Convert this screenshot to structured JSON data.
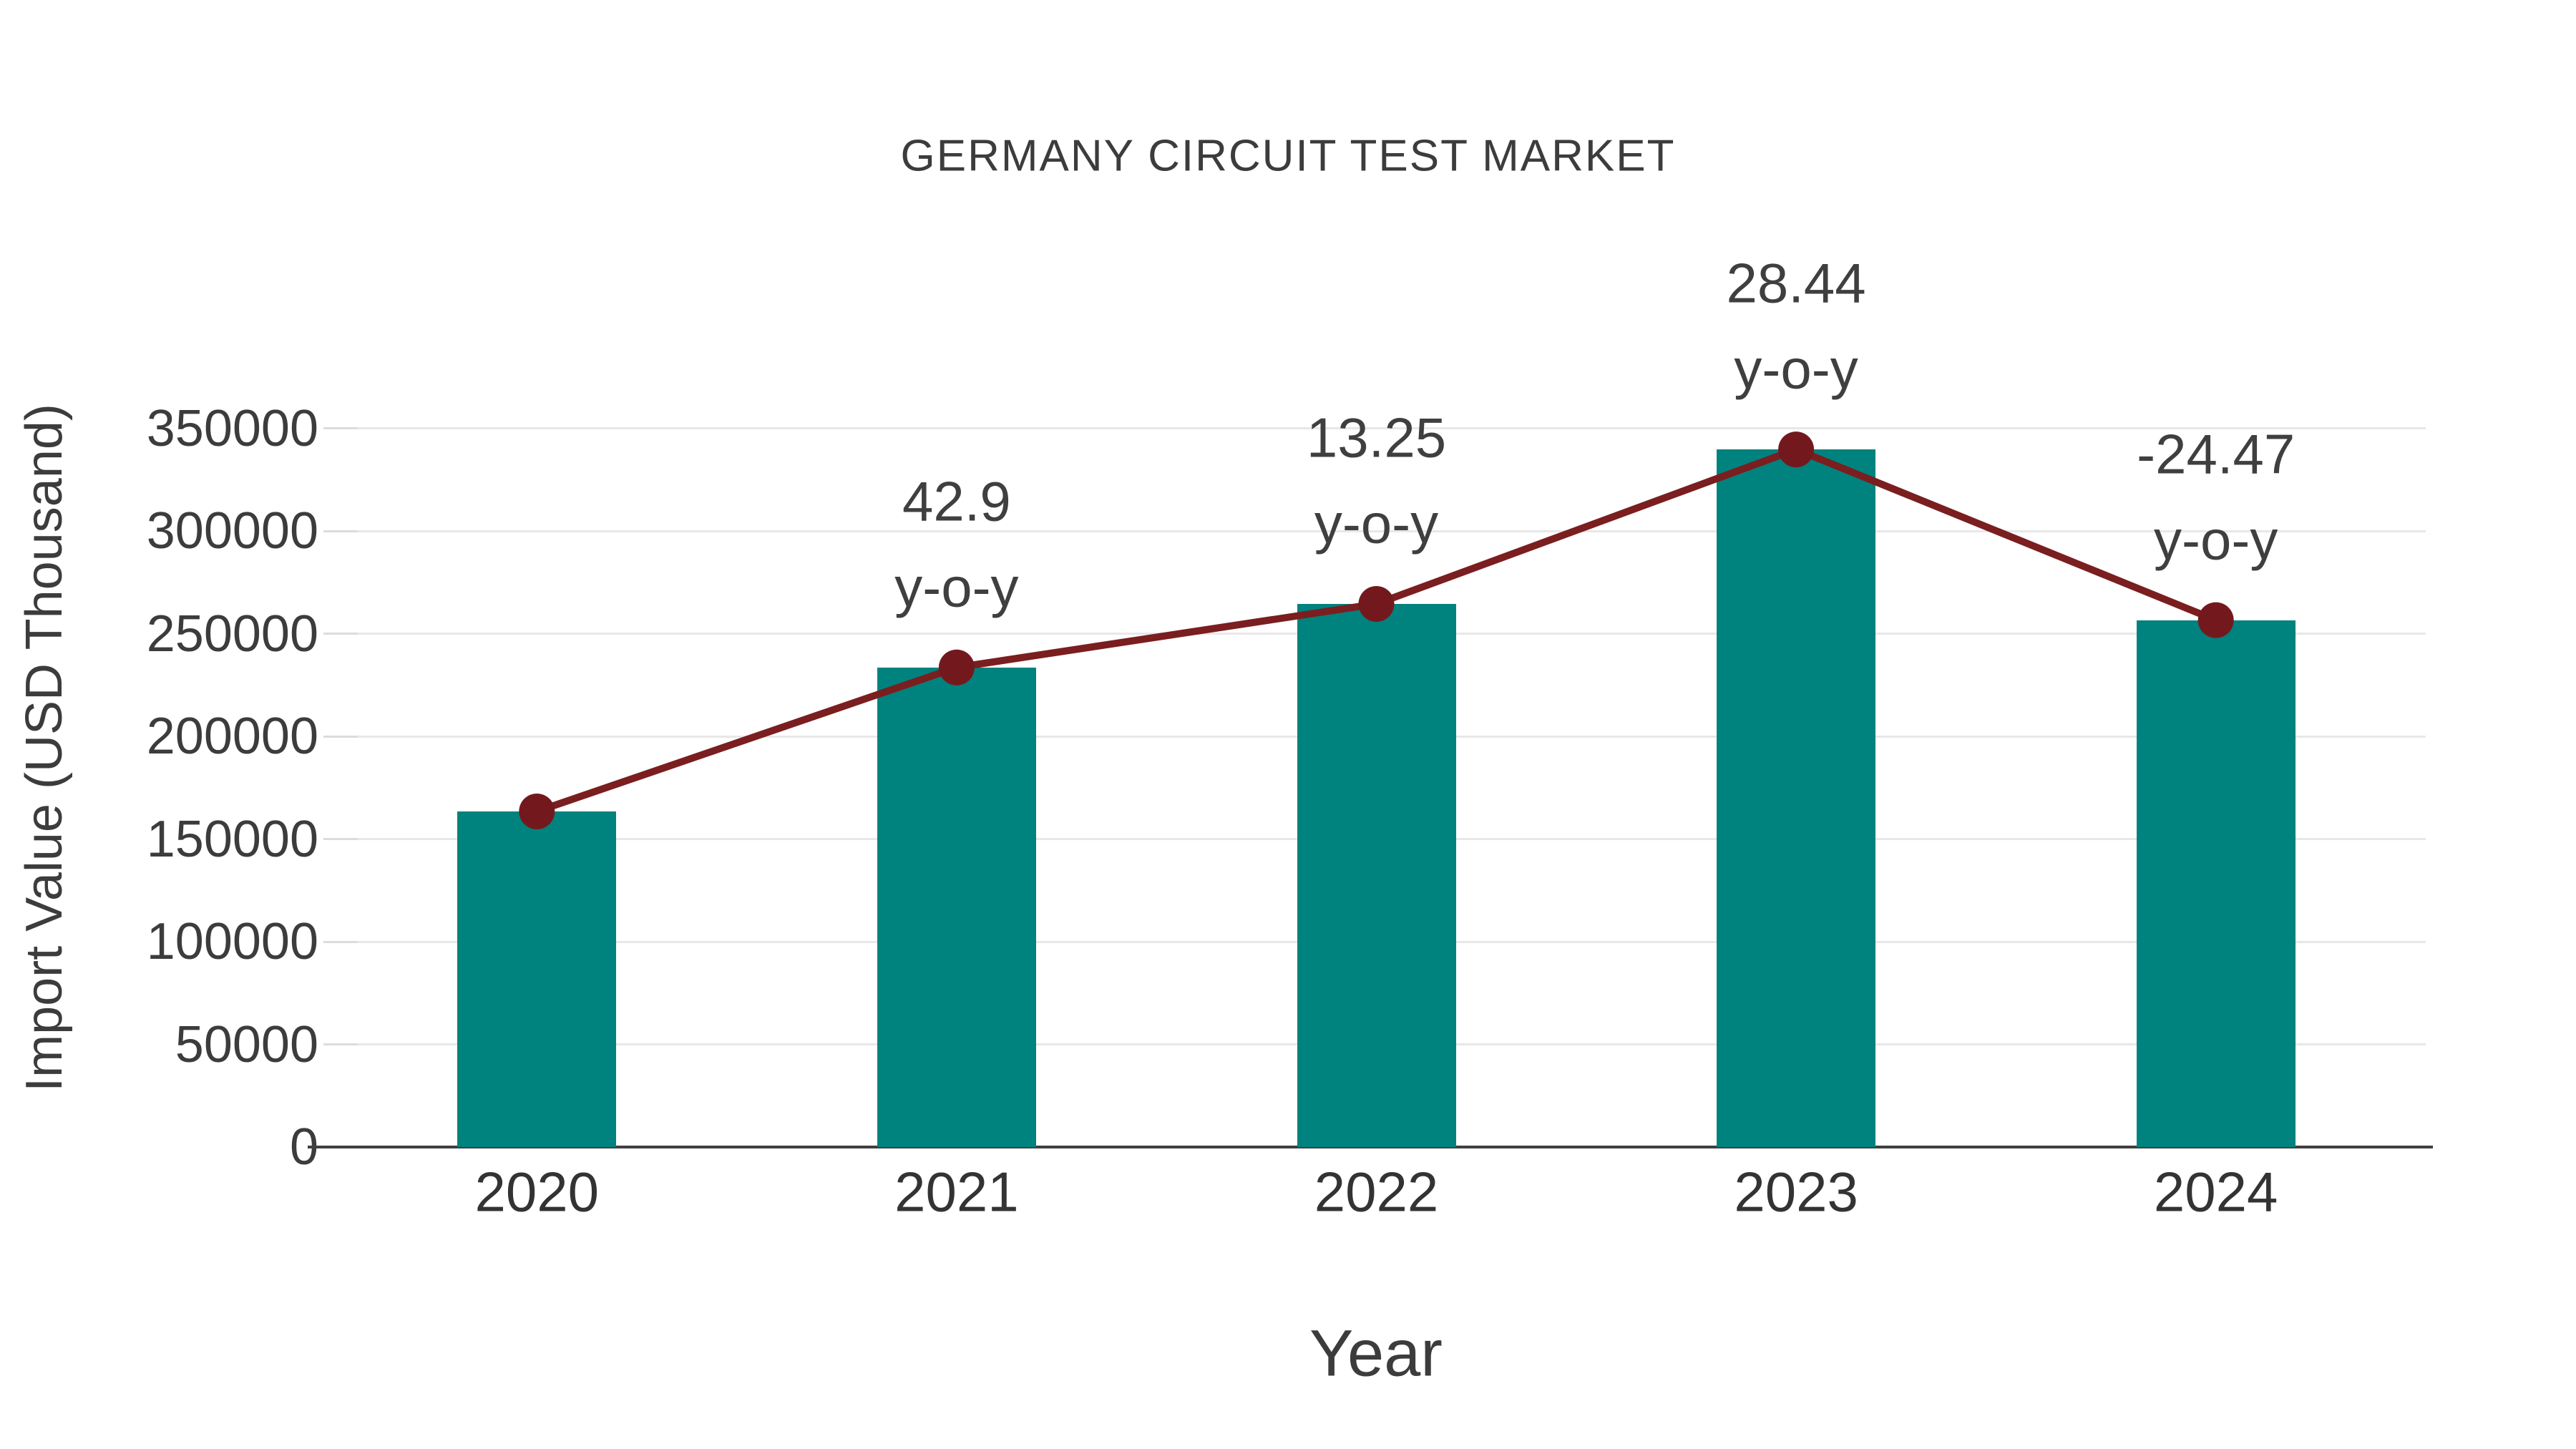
{
  "chart_data": {
    "type": "bar",
    "title": "GERMANY CIRCUIT TEST MARKET",
    "xlabel": "Year",
    "ylabel": "Import Value (USD Thousand)",
    "categories": [
      "2020",
      "2021",
      "2022",
      "2023",
      "2024"
    ],
    "series": [
      {
        "name": "import-value-bars",
        "type": "bar",
        "color": "#00827e",
        "values": [
          163500,
          233640,
          264600,
          339850,
          256690
        ]
      },
      {
        "name": "import-value-trend-line",
        "type": "line",
        "color": "#7a1e20",
        "values": [
          163500,
          233640,
          264600,
          339850,
          256690
        ]
      }
    ],
    "yoy_percent": [
      null,
      42.9,
      13.25,
      28.44,
      -24.47
    ],
    "annotations": [
      {
        "category": "2021",
        "line1": "42.9",
        "line2": "y-o-y"
      },
      {
        "category": "2022",
        "line1": "13.25",
        "line2": "y-o-y"
      },
      {
        "category": "2023",
        "line1": "28.44",
        "line2": "y-o-y"
      },
      {
        "category": "2024",
        "line1": "-24.47",
        "line2": "y-o-y"
      }
    ],
    "yticks": [
      0,
      50000,
      100000,
      150000,
      200000,
      250000,
      300000,
      350000
    ],
    "ylim": [
      0,
      391000
    ],
    "grid": true,
    "legend": "none",
    "colors": {
      "bar": "#00827e",
      "line": "#7a1e20",
      "marker": "#73191d",
      "gridline": "#e8e8e8",
      "axis": "#3f3f3f",
      "text": "#3c3c3c",
      "background": "#ffffff"
    }
  }
}
